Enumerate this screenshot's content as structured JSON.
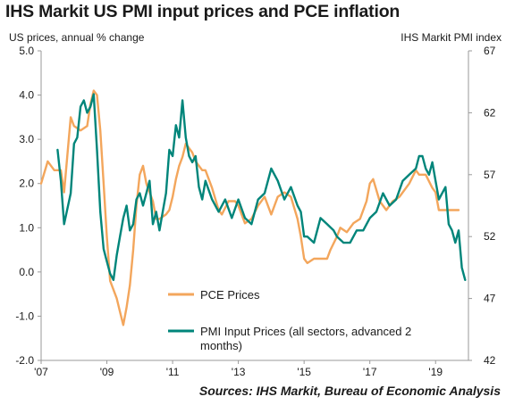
{
  "chart_data": {
    "type": "line",
    "title": "IHS Markit US PMI input prices and PCE inflation",
    "left_axis": {
      "label": "US prices, annual % change",
      "range": [
        -2.0,
        5.0
      ],
      "ticks": [
        "5.0",
        "4.0",
        "3.0",
        "2.0",
        "1.0",
        "0.0",
        "-1.0",
        "-2.0"
      ]
    },
    "right_axis": {
      "label": "IHS Markit PMI index",
      "range": [
        42,
        67
      ],
      "ticks": [
        "67",
        "62",
        "57",
        "52",
        "47",
        "42"
      ]
    },
    "x_axis": {
      "range": [
        2007.0,
        2020.0
      ],
      "ticks": [
        "'07",
        "'09",
        "'11",
        "'13",
        "'15",
        "'17",
        "'19"
      ]
    },
    "grid": false,
    "legend_placement": "bottom-center",
    "source": "Sources: IHS Markit, Bureau of Economic Analysis",
    "series": [
      {
        "name": "PCE Prices",
        "axis": "left",
        "color": "#f3a65c",
        "x": [
          2007.0,
          2007.2,
          2007.4,
          2007.6,
          2007.7,
          2007.9,
          2008.0,
          2008.2,
          2008.4,
          2008.5,
          2008.6,
          2008.7,
          2008.8,
          2008.9,
          2009.0,
          2009.1,
          2009.3,
          2009.4,
          2009.5,
          2009.6,
          2009.7,
          2009.8,
          2009.9,
          2010.0,
          2010.1,
          2010.2,
          2010.4,
          2010.5,
          2010.6,
          2010.8,
          2010.9,
          2011.0,
          2011.1,
          2011.2,
          2011.3,
          2011.4,
          2011.5,
          2011.6,
          2011.7,
          2011.8,
          2011.9,
          2012.0,
          2012.2,
          2012.4,
          2012.5,
          2012.7,
          2012.9,
          2013.0,
          2013.2,
          2013.4,
          2013.6,
          2013.8,
          2014.0,
          2014.2,
          2014.4,
          2014.6,
          2014.8,
          2014.9,
          2015.0,
          2015.1,
          2015.3,
          2015.5,
          2015.7,
          2015.8,
          2016.0,
          2016.1,
          2016.3,
          2016.5,
          2016.7,
          2016.9,
          2017.0,
          2017.1,
          2017.3,
          2017.5,
          2017.7,
          2017.9,
          2018.0,
          2018.2,
          2018.4,
          2018.5,
          2018.7,
          2018.9,
          2019.0,
          2019.1,
          2019.3,
          2019.5,
          2019.7
        ],
        "values": [
          2.0,
          2.5,
          2.3,
          2.3,
          1.8,
          3.5,
          3.3,
          3.2,
          3.3,
          3.8,
          4.1,
          4.0,
          3.2,
          2.0,
          0.8,
          -0.2,
          -0.6,
          -0.9,
          -1.2,
          -0.8,
          -0.3,
          0.5,
          1.5,
          2.2,
          2.4,
          2.0,
          1.6,
          1.2,
          1.2,
          1.3,
          1.4,
          1.7,
          2.1,
          2.4,
          2.6,
          2.9,
          2.8,
          2.7,
          2.5,
          2.4,
          2.3,
          2.3,
          1.9,
          1.4,
          1.3,
          1.6,
          1.6,
          1.5,
          1.1,
          1.2,
          1.5,
          1.7,
          1.3,
          1.7,
          1.8,
          1.7,
          1.2,
          0.8,
          0.3,
          0.2,
          0.3,
          0.3,
          0.3,
          0.5,
          0.8,
          1.0,
          0.9,
          1.1,
          1.2,
          1.6,
          2.0,
          2.1,
          1.6,
          1.4,
          1.6,
          1.7,
          1.8,
          2.0,
          2.3,
          2.2,
          2.2,
          1.9,
          1.8,
          1.4,
          1.4,
          1.4,
          1.4
        ]
      },
      {
        "name": "PMI Input Prices (all sectors, advanced 2 months)",
        "axis": "right",
        "color": "#00857a",
        "x": [
          2007.5,
          2007.6,
          2007.7,
          2007.9,
          2008.0,
          2008.1,
          2008.2,
          2008.3,
          2008.4,
          2008.5,
          2008.6,
          2008.7,
          2008.8,
          2008.9,
          2009.0,
          2009.1,
          2009.2,
          2009.3,
          2009.4,
          2009.5,
          2009.6,
          2009.7,
          2009.8,
          2009.9,
          2010.0,
          2010.1,
          2010.2,
          2010.3,
          2010.4,
          2010.5,
          2010.6,
          2010.7,
          2010.8,
          2010.9,
          2011.0,
          2011.1,
          2011.2,
          2011.3,
          2011.4,
          2011.5,
          2011.6,
          2011.7,
          2011.8,
          2011.9,
          2012.0,
          2012.2,
          2012.4,
          2012.6,
          2012.8,
          2013.0,
          2013.2,
          2013.4,
          2013.6,
          2013.8,
          2014.0,
          2014.2,
          2014.4,
          2014.6,
          2014.8,
          2014.9,
          2015.0,
          2015.1,
          2015.3,
          2015.5,
          2015.7,
          2015.9,
          2016.0,
          2016.2,
          2016.4,
          2016.6,
          2016.8,
          2017.0,
          2017.2,
          2017.4,
          2017.6,
          2017.8,
          2018.0,
          2018.2,
          2018.4,
          2018.5,
          2018.6,
          2018.7,
          2018.8,
          2018.9,
          2019.0,
          2019.1,
          2019.2,
          2019.3,
          2019.4,
          2019.5,
          2019.6,
          2019.7,
          2019.8,
          2019.9
        ],
        "values": [
          59.0,
          56.5,
          53.0,
          55.5,
          59.5,
          60.0,
          62.5,
          63.0,
          62.0,
          62.5,
          63.5,
          59.0,
          54.0,
          51.0,
          50.0,
          49.0,
          48.5,
          50.5,
          52.0,
          53.5,
          54.5,
          52.5,
          53.0,
          55.0,
          55.5,
          54.5,
          55.5,
          56.5,
          53.0,
          54.0,
          52.5,
          54.0,
          55.5,
          59.0,
          58.5,
          61.0,
          60.0,
          63.0,
          60.0,
          58.5,
          58.0,
          58.5,
          56.0,
          55.0,
          56.5,
          55.0,
          54.0,
          55.0,
          53.5,
          55.0,
          53.5,
          53.0,
          55.0,
          55.5,
          57.5,
          56.5,
          55.0,
          56.0,
          54.5,
          54.0,
          52.0,
          52.0,
          51.5,
          53.5,
          53.0,
          52.5,
          52.0,
          51.5,
          51.5,
          52.5,
          52.5,
          53.5,
          54.0,
          55.5,
          54.5,
          55.0,
          56.5,
          57.0,
          57.5,
          58.5,
          58.5,
          57.5,
          57.0,
          58.0,
          56.5,
          55.0,
          55.5,
          56.0,
          53.0,
          52.5,
          51.5,
          52.5,
          49.5,
          48.5
        ]
      }
    ]
  }
}
